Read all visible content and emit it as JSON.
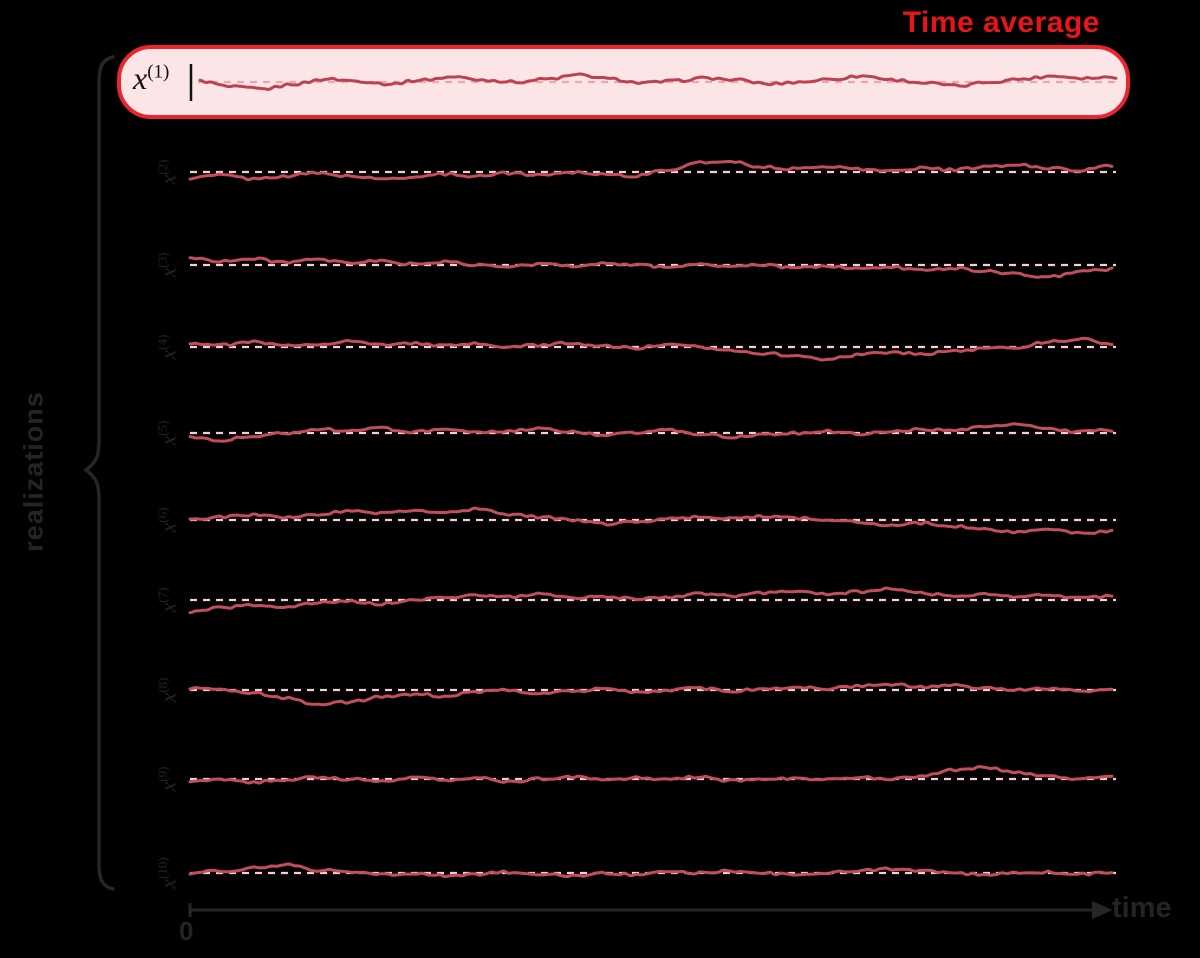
{
  "title": {
    "text": "Time average"
  },
  "left_label": "realizations",
  "axis": {
    "origin_label": "0",
    "x_label": "time"
  },
  "box": {
    "label_base": "x",
    "label_sup": "(1)"
  },
  "colors": {
    "title": "#e8141c",
    "box_border": "#e9262d",
    "box_fill": "#fce5e7",
    "trace": "#c24e5b",
    "trace_highlight": "#bb4251",
    "mean_dash": "#f8ccd3",
    "mean_dash_highlight": "#f0a6b1",
    "figure_text": "#242424",
    "axis": "#262626",
    "tick": "#111111"
  },
  "chart_data": {
    "type": "line",
    "title": "Time average",
    "xlabel": "time",
    "ylabel": "realizations",
    "x_origin_label": "0",
    "description": "Ten realizations of a stationary random process drawn as noisy traces around their dashed mean lines; the first realization is highlighted in a red rounded box labeled Time average.",
    "render": {
      "x_start": 190,
      "x_end": 1112,
      "samples": 440,
      "jitter": 2.6,
      "label_x": 163
    },
    "series": [
      {
        "name_base": "x",
        "name_sup": "(1)",
        "highlight": true,
        "baseline": 82,
        "x0": 200,
        "x1": 1116,
        "seed": 1,
        "offsets": [
          1,
          -5,
          -7,
          -2,
          3,
          1,
          -2,
          2,
          5,
          2,
          0,
          3,
          7,
          3,
          -1,
          1,
          4,
          2,
          -2,
          0,
          3,
          6,
          2,
          -1,
          -4,
          0,
          3,
          6,
          4,
          5
        ]
      },
      {
        "name_base": "x",
        "name_sup": "(2)",
        "highlight": false,
        "baseline": 172,
        "seed": 2,
        "offsets": [
          -6,
          -3,
          -7,
          -4,
          -1,
          -4,
          -7,
          -5,
          -2,
          -4,
          -1,
          -3,
          0,
          -2,
          -4,
          2,
          9,
          11,
          5,
          3,
          6,
          3,
          1,
          4,
          2,
          5,
          7,
          4,
          2,
          6
        ]
      },
      {
        "name_base": "x",
        "name_sup": "(3)",
        "highlight": false,
        "baseline": 265,
        "seed": 3,
        "offsets": [
          7,
          4,
          6,
          3,
          5,
          2,
          4,
          1,
          3,
          0,
          -2,
          1,
          -1,
          2,
          0,
          -2,
          1,
          -2,
          0,
          -3,
          -1,
          -4,
          -2,
          -5,
          -3,
          -6,
          -9,
          -12,
          -7,
          -4
        ]
      },
      {
        "name_base": "x",
        "name_sup": "(4)",
        "highlight": false,
        "baseline": 347,
        "seed": 4,
        "offsets": [
          4,
          2,
          5,
          1,
          3,
          6,
          2,
          4,
          1,
          3,
          0,
          2,
          4,
          1,
          -1,
          2,
          0,
          -3,
          -6,
          -9,
          -12,
          -8,
          -5,
          -7,
          -4,
          -2,
          0,
          5,
          8,
          2
        ]
      },
      {
        "name_base": "x",
        "name_sup": "(5)",
        "highlight": false,
        "baseline": 433,
        "seed": 5,
        "offsets": [
          -4,
          -7,
          -3,
          0,
          4,
          2,
          5,
          1,
          3,
          0,
          2,
          4,
          1,
          -2,
          0,
          3,
          -1,
          -4,
          -2,
          0,
          2,
          -1,
          1,
          4,
          2,
          6,
          8,
          4,
          1,
          3
        ]
      },
      {
        "name_base": "x",
        "name_sup": "(6)",
        "highlight": false,
        "baseline": 520,
        "seed": 6,
        "offsets": [
          0,
          3,
          5,
          2,
          6,
          9,
          7,
          10,
          8,
          11,
          6,
          3,
          0,
          -4,
          -2,
          1,
          3,
          1,
          4,
          2,
          0,
          -2,
          -5,
          -3,
          -6,
          -9,
          -12,
          -10,
          -13,
          -11
        ]
      },
      {
        "name_base": "x",
        "name_sup": "(7)",
        "highlight": false,
        "baseline": 600,
        "seed": 7,
        "offsets": [
          -12,
          -8,
          -5,
          -7,
          -3,
          -1,
          -4,
          0,
          2,
          5,
          3,
          6,
          2,
          4,
          1,
          3,
          6,
          4,
          7,
          9,
          6,
          8,
          11,
          7,
          4,
          6,
          3,
          5,
          2,
          4
        ]
      },
      {
        "name_base": "x",
        "name_sup": "(8)",
        "highlight": false,
        "baseline": 690,
        "seed": 8,
        "offsets": [
          2,
          0,
          -3,
          -8,
          -14,
          -12,
          -7,
          -4,
          -6,
          -2,
          0,
          -3,
          -1,
          1,
          -2,
          0,
          2,
          -1,
          1,
          3,
          1,
          4,
          6,
          3,
          5,
          2,
          0,
          2,
          -1,
          1
        ]
      },
      {
        "name_base": "x",
        "name_sup": "(9)",
        "highlight": false,
        "baseline": 779,
        "seed": 9,
        "offsets": [
          -2,
          0,
          -3,
          -1,
          2,
          0,
          -2,
          1,
          -1,
          1,
          -3,
          0,
          2,
          -1,
          1,
          0,
          2,
          -2,
          0,
          1,
          -1,
          2,
          0,
          3,
          9,
          12,
          7,
          3,
          0,
          2
        ]
      },
      {
        "name_base": "x",
        "name_sup": "(10)",
        "highlight": false,
        "baseline": 873,
        "seed": 10,
        "offsets": [
          0,
          2,
          5,
          8,
          3,
          1,
          -2,
          0,
          -3,
          -1,
          1,
          -1,
          -3,
          0,
          -2,
          1,
          0,
          2,
          0,
          -2,
          0,
          2,
          4,
          2,
          0,
          -2,
          0,
          1,
          -1,
          0
        ]
      }
    ]
  }
}
